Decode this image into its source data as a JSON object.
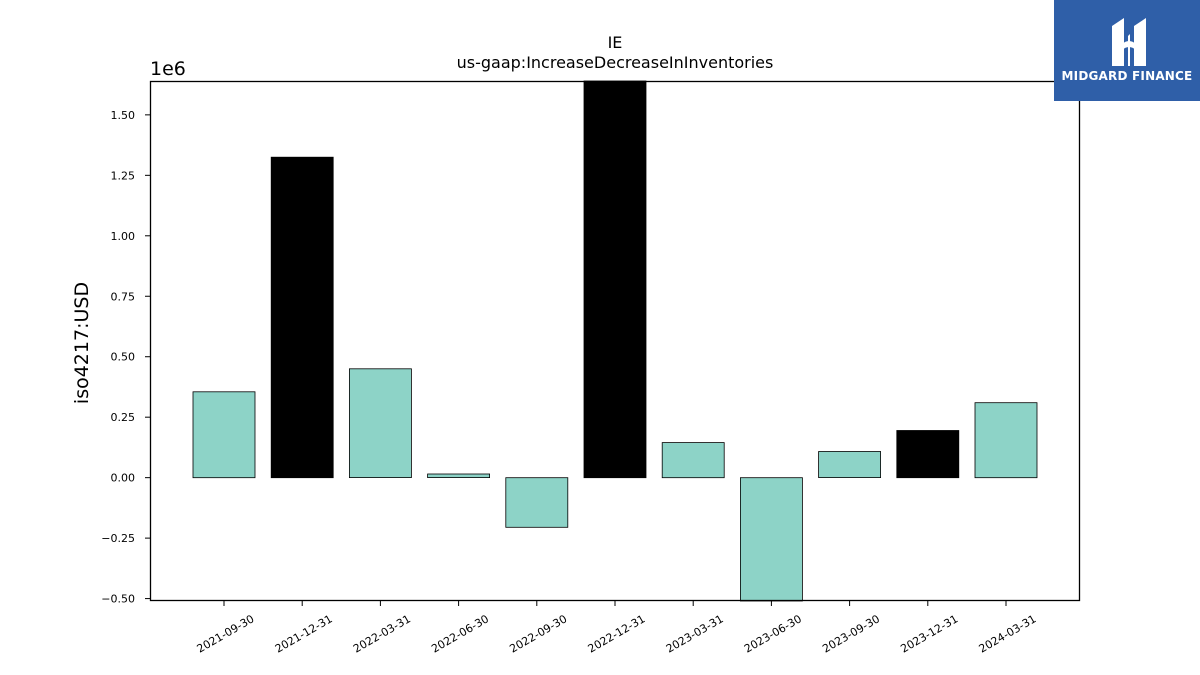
{
  "chart_data": {
    "type": "bar",
    "title": "IE",
    "subtitle": "us-gaap:IncreaseDecreaseInInventories",
    "ylabel": "iso4217:USD",
    "xlabel": "",
    "offset_label": "1e6",
    "scale": 1000000,
    "ylim": [
      -0.51,
      1.64
    ],
    "yticks": [
      -0.5,
      -0.25,
      0.0,
      0.25,
      0.5,
      0.75,
      1.0,
      1.25,
      1.5
    ],
    "ytick_labels": [
      "−0.50",
      "−0.25",
      "0.00",
      "0.25",
      "0.50",
      "0.75",
      "1.00",
      "1.25",
      "1.50"
    ],
    "categories": [
      "2021-09-30",
      "2021-12-31",
      "2022-03-31",
      "2022-06-30",
      "2022-09-30",
      "2022-12-31",
      "2023-03-31",
      "2023-06-30",
      "2023-09-30",
      "2023-12-31",
      "2024-03-31"
    ],
    "values": [
      355000,
      1325000,
      450000,
      15000,
      -205000,
      1650000,
      145000,
      -510000,
      108000,
      195000,
      310000
    ],
    "bar_colors": [
      "#8dd3c7",
      "#000000",
      "#8dd3c7",
      "#8dd3c7",
      "#8dd3c7",
      "#000000",
      "#8dd3c7",
      "#8dd3c7",
      "#8dd3c7",
      "#000000",
      "#8dd3c7"
    ],
    "grid": false,
    "legend": "none"
  },
  "logo": {
    "text": "MIDGARD FINANCE",
    "color": "#2f5fa8"
  }
}
